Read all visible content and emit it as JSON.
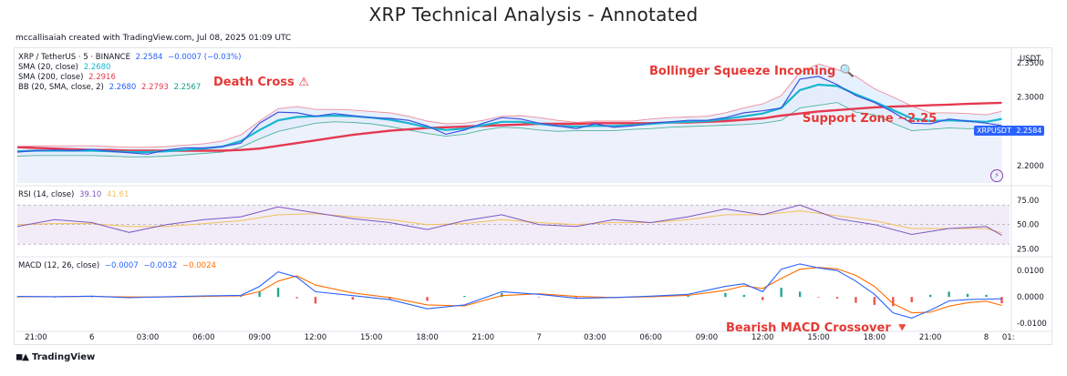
{
  "figure_title": "XRP Technical Analysis - Annotated",
  "credit": "mccallisaiah created with TradingView.com, Jul 08, 2025 01:09 UTC",
  "footer_brand": "TradingView",
  "currency_label": "USDT",
  "price_tag": {
    "symbol": "XRPUSDT",
    "value": "2.2584"
  },
  "annotations": {
    "death_cross": "Death Cross ⚠",
    "bollinger": "Bollinger Squeeze Incoming 🔍",
    "support": "Support Zone ~2.25",
    "macd_cross": "Bearish MACD Crossover 🔻"
  },
  "legend": {
    "symbol": "XRP / TetherUS · 5 · BINANCE",
    "price": "2.2584",
    "change": "−0.0007 (−0.03%)",
    "sma20_label": "SMA (20, close)",
    "sma20_value": "2.2680",
    "sma200_label": "SMA (200, close)",
    "sma200_value": "2.2916",
    "bb_label": "BB (20, SMA, close, 2)",
    "bb_basis": "2.2680",
    "bb_upper": "2.2793",
    "bb_lower": "2.2567",
    "rsi_label": "RSI (14, close)",
    "rsi_value": "39.10",
    "rsi_ma": "41.61",
    "macd_label": "MACD (12, 26, close)",
    "macd_value": "−0.0007",
    "macd_signal": "−0.0032",
    "macd_hist": "−0.0024"
  },
  "colors": {
    "price": "#3d4fe0",
    "sma20": "#16b6cf",
    "sma200": "#e53950",
    "bb_upper": "#f28b9a",
    "bb_lower": "#4fb39b",
    "area": "#e6ebfb",
    "rsi": "#7e57c2",
    "rsi_ma": "#f3c15a",
    "macd": "#2962ff",
    "signal": "#ff6d00",
    "hist_pos": "#26a69a",
    "hist_neg": "#ef5350"
  },
  "chart_data": [
    {
      "type": "line",
      "panel": "price",
      "x_ticks": [
        "21:00",
        "6",
        "03:00",
        "06:00",
        "09:00",
        "12:00",
        "15:00",
        "18:00",
        "21:00",
        "7",
        "03:00",
        "06:00",
        "09:00",
        "12:00",
        "15:00",
        "18:00",
        "21:00",
        "8",
        "01:"
      ],
      "y_ticks": [
        2.2,
        2.25,
        2.3,
        2.35
      ],
      "y_tick_labels": [
        "2.2000",
        "2.2500",
        "2.3000",
        "2.3500"
      ],
      "ylim": [
        2.175,
        2.355
      ],
      "x": [
        "5 20:00",
        "5 21:00",
        "5 22:00",
        "5 23:00",
        "6 00:00",
        "6 01:00",
        "6 02:00",
        "6 03:00",
        "6 04:00",
        "6 05:00",
        "6 06:00",
        "6 07:00",
        "6 08:00",
        "6 09:00",
        "6 10:00",
        "6 11:00",
        "6 12:00",
        "6 13:00",
        "6 14:00",
        "6 15:00",
        "6 16:00",
        "6 17:00",
        "6 18:00",
        "6 19:00",
        "6 20:00",
        "6 21:00",
        "6 22:00",
        "6 23:00",
        "7 00:00",
        "7 01:00",
        "7 02:00",
        "7 03:00",
        "7 04:00",
        "7 05:00",
        "7 06:00",
        "7 07:00",
        "7 08:00",
        "7 09:00",
        "7 10:00",
        "7 11:00",
        "7 12:00",
        "7 13:00",
        "7 14:00",
        "7 15:00",
        "7 16:00",
        "7 17:00",
        "7 18:00",
        "7 19:00",
        "7 20:00",
        "7 21:00",
        "7 22:00",
        "7 23:00",
        "8 00:00",
        "8 00:50"
      ],
      "series": [
        {
          "name": "XRP / TetherUS",
          "values": [
            2.22,
            2.222,
            2.223,
            2.222,
            2.224,
            2.221,
            2.219,
            2.217,
            2.223,
            2.226,
            2.226,
            2.228,
            2.233,
            2.262,
            2.278,
            2.277,
            2.272,
            2.276,
            2.273,
            2.27,
            2.269,
            2.266,
            2.258,
            2.246,
            2.252,
            2.262,
            2.27,
            2.268,
            2.262,
            2.258,
            2.254,
            2.261,
            2.256,
            2.258,
            2.262,
            2.264,
            2.266,
            2.266,
            2.27,
            2.277,
            2.28,
            2.284,
            2.326,
            2.33,
            2.318,
            2.302,
            2.292,
            2.278,
            2.262,
            2.261,
            2.268,
            2.265,
            2.262,
            2.2584
          ]
        },
        {
          "name": "SMA (20, close)",
          "values": [
            2.221,
            2.222,
            2.222,
            2.222,
            2.222,
            2.221,
            2.22,
            2.22,
            2.221,
            2.223,
            2.225,
            2.228,
            2.236,
            2.252,
            2.266,
            2.271,
            2.272,
            2.273,
            2.272,
            2.27,
            2.267,
            2.262,
            2.256,
            2.252,
            2.254,
            2.259,
            2.264,
            2.264,
            2.261,
            2.258,
            2.257,
            2.258,
            2.258,
            2.259,
            2.261,
            2.263,
            2.264,
            2.265,
            2.268,
            2.272,
            2.276,
            2.284,
            2.31,
            2.318,
            2.316,
            2.304,
            2.293,
            2.281,
            2.269,
            2.265,
            2.266,
            2.265,
            2.264,
            2.268
          ]
        },
        {
          "name": "SMA (200, close)",
          "values": [
            2.227,
            2.226,
            2.225,
            2.224,
            2.223,
            2.223,
            2.222,
            2.222,
            2.222,
            2.222,
            2.222,
            2.222,
            2.223,
            2.225,
            2.229,
            2.233,
            2.237,
            2.241,
            2.245,
            2.248,
            2.251,
            2.253,
            2.255,
            2.256,
            2.257,
            2.258,
            2.259,
            2.26,
            2.261,
            2.261,
            2.261,
            2.262,
            2.262,
            2.262,
            2.262,
            2.263,
            2.263,
            2.264,
            2.265,
            2.267,
            2.269,
            2.273,
            2.276,
            2.279,
            2.281,
            2.283,
            2.285,
            2.286,
            2.287,
            2.288,
            2.289,
            2.29,
            2.291,
            2.2916
          ]
        },
        {
          "name": "BB (20, SMA, close, 2) upper",
          "values": [
            2.228,
            2.229,
            2.229,
            2.229,
            2.229,
            2.228,
            2.227,
            2.227,
            2.228,
            2.23,
            2.232,
            2.236,
            2.245,
            2.265,
            2.283,
            2.286,
            2.282,
            2.282,
            2.281,
            2.279,
            2.277,
            2.272,
            2.265,
            2.261,
            2.262,
            2.266,
            2.272,
            2.273,
            2.27,
            2.266,
            2.263,
            2.265,
            2.265,
            2.265,
            2.268,
            2.27,
            2.271,
            2.272,
            2.277,
            2.284,
            2.29,
            2.302,
            2.336,
            2.348,
            2.34,
            2.33,
            2.312,
            2.3,
            2.287,
            2.277,
            2.277,
            2.276,
            2.274,
            2.2793
          ]
        },
        {
          "name": "BB (20, SMA, close, 2) lower",
          "values": [
            2.214,
            2.215,
            2.215,
            2.215,
            2.215,
            2.214,
            2.213,
            2.213,
            2.214,
            2.216,
            2.218,
            2.22,
            2.227,
            2.239,
            2.25,
            2.256,
            2.262,
            2.264,
            2.263,
            2.261,
            2.257,
            2.252,
            2.247,
            2.243,
            2.246,
            2.252,
            2.256,
            2.255,
            2.252,
            2.25,
            2.251,
            2.251,
            2.251,
            2.253,
            2.254,
            2.256,
            2.257,
            2.258,
            2.259,
            2.26,
            2.262,
            2.266,
            2.284,
            2.288,
            2.292,
            2.278,
            2.274,
            2.262,
            2.251,
            2.253,
            2.255,
            2.254,
            2.254,
            2.2567
          ]
        }
      ]
    },
    {
      "type": "line",
      "panel": "rsi",
      "y_ticks": [
        25,
        50,
        75
      ],
      "y_tick_labels": [
        "25.00",
        "50.00",
        "75.00"
      ],
      "ylim": [
        20,
        85
      ],
      "band": [
        30,
        70
      ],
      "x": [
        "5 20:00",
        "5 22:00",
        "6 00:00",
        "6 02:00",
        "6 04:00",
        "6 06:00",
        "6 08:00",
        "6 10:00",
        "6 12:00",
        "6 14:00",
        "6 16:00",
        "6 18:00",
        "6 20:00",
        "6 22:00",
        "7 00:00",
        "7 02:00",
        "7 04:00",
        "7 06:00",
        "7 08:00",
        "7 10:00",
        "7 12:00",
        "7 14:00",
        "7 16:00",
        "7 18:00",
        "7 20:00",
        "7 22:00",
        "8 00:00",
        "8 00:50"
      ],
      "series": [
        {
          "name": "RSI (14, close)",
          "values": [
            48,
            55,
            52,
            42,
            50,
            55,
            58,
            68,
            62,
            56,
            52,
            45,
            54,
            60,
            50,
            48,
            55,
            52,
            58,
            66,
            60,
            70,
            56,
            50,
            40,
            46,
            48,
            39.1
          ]
        },
        {
          "name": "RSI MA",
          "values": [
            50,
            51,
            51,
            48,
            48,
            51,
            54,
            60,
            61,
            58,
            55,
            50,
            51,
            55,
            52,
            50,
            52,
            52,
            55,
            60,
            60,
            64,
            59,
            54,
            46,
            46,
            46,
            41.61
          ]
        }
      ]
    },
    {
      "type": "bar",
      "panel": "macd",
      "y_ticks": [
        -0.01,
        0,
        0.01
      ],
      "y_tick_labels": [
        "-0.0100",
        "0.0000",
        "0.0100"
      ],
      "ylim": [
        -0.012,
        0.0135
      ],
      "x": [
        "5 20:00",
        "5 22:00",
        "6 00:00",
        "6 02:00",
        "6 04:00",
        "6 06:00",
        "6 08:00",
        "6 09:00",
        "6 10:00",
        "6 11:00",
        "6 12:00",
        "6 14:00",
        "6 16:00",
        "6 18:00",
        "6 20:00",
        "6 22:00",
        "7 00:00",
        "7 02:00",
        "7 04:00",
        "7 06:00",
        "7 08:00",
        "7 10:00",
        "7 11:00",
        "7 12:00",
        "7 13:00",
        "7 14:00",
        "7 15:00",
        "7 16:00",
        "7 17:00",
        "7 18:00",
        "7 19:00",
        "7 20:00",
        "7 21:00",
        "7 22:00",
        "7 23:00",
        "8 00:00",
        "8 00:50"
      ],
      "series": [
        {
          "name": "MACD",
          "values": [
            0.0002,
            0.0001,
            0.0003,
            -0.0003,
            0.0001,
            0.0004,
            0.0006,
            0.004,
            0.0095,
            0.0075,
            0.002,
            0.0005,
            -0.001,
            -0.0045,
            -0.003,
            0.002,
            0.001,
            -0.0005,
            -0.0002,
            0.0003,
            0.001,
            0.004,
            0.005,
            0.002,
            0.0105,
            0.0125,
            0.011,
            0.01,
            0.006,
            0.001,
            -0.006,
            -0.008,
            -0.005,
            -0.0015,
            -0.001,
            -0.0008,
            -0.0007
          ]
        },
        {
          "name": "Signal",
          "values": [
            0.0001,
            0.0001,
            0.0002,
            0.0,
            0.0,
            0.0002,
            0.0004,
            0.002,
            0.006,
            0.008,
            0.0045,
            0.0015,
            -0.0002,
            -0.003,
            -0.0034,
            0.0005,
            0.0012,
            0.0002,
            -0.0002,
            0.0001,
            0.0006,
            0.0025,
            0.0042,
            0.0032,
            0.007,
            0.0105,
            0.0112,
            0.0106,
            0.0082,
            0.004,
            -0.0025,
            -0.006,
            -0.0058,
            -0.0035,
            -0.0022,
            -0.0016,
            -0.0032
          ]
        },
        {
          "name": "Histogram",
          "values": [
            0.0001,
            0.0,
            0.0001,
            -0.0003,
            0.0001,
            0.0002,
            0.0002,
            0.002,
            0.0035,
            -0.0005,
            -0.0025,
            -0.001,
            -0.0008,
            -0.0015,
            0.0004,
            0.0015,
            -0.0002,
            -0.0007,
            0.0,
            0.0002,
            0.0004,
            0.0015,
            0.0008,
            -0.0012,
            0.0035,
            0.002,
            -0.0002,
            -0.0006,
            -0.0022,
            -0.003,
            -0.0035,
            -0.002,
            0.0008,
            0.002,
            0.0012,
            0.0008,
            -0.0024
          ]
        }
      ]
    }
  ]
}
